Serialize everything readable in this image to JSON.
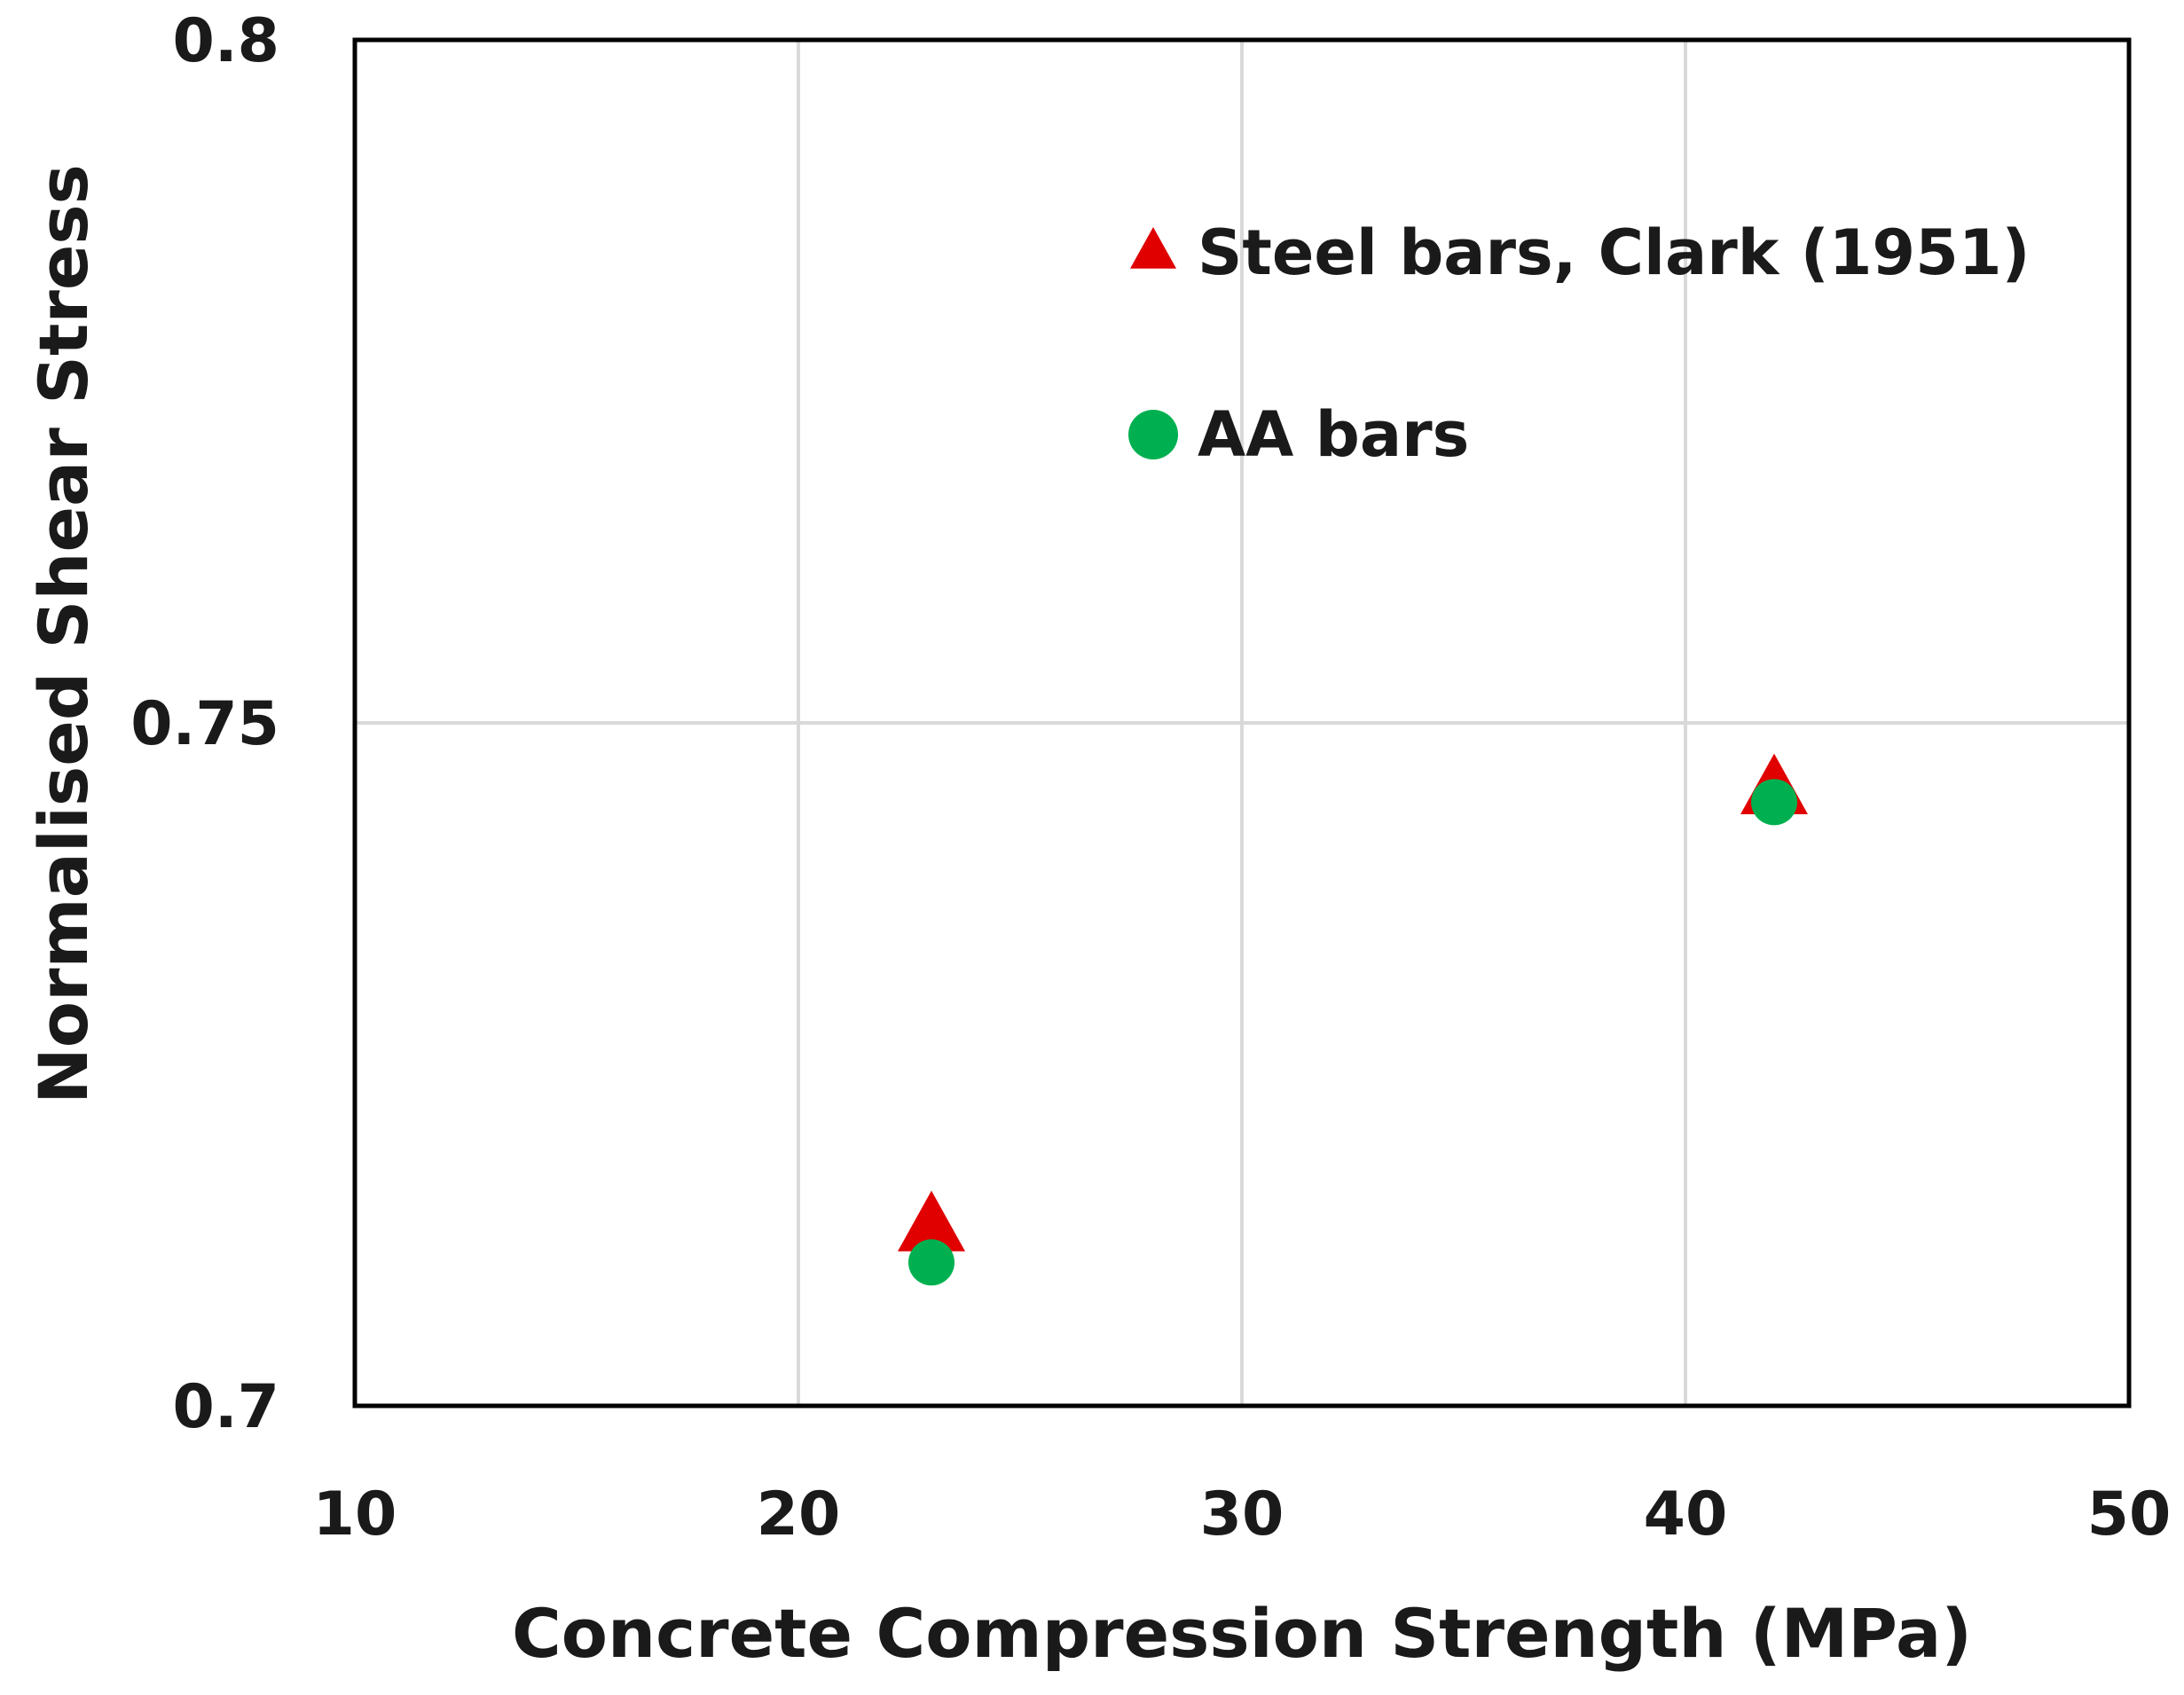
{
  "chart_data": {
    "type": "scatter",
    "title": "",
    "xlabel": "Concrete Compression Strength (MPa)",
    "ylabel": "Normalised Shear Stress",
    "xlim": [
      10,
      50
    ],
    "ylim": [
      0.7,
      0.8
    ],
    "xticks": [
      10,
      20,
      30,
      40,
      50
    ],
    "xtick_labels": [
      "10",
      "20",
      "30",
      "40",
      "50"
    ],
    "yticks": [
      0.7,
      0.75,
      0.8
    ],
    "ytick_labels": [
      "0.7",
      "0.75",
      "0.8"
    ],
    "grid": true,
    "legend_position": "top-center",
    "series": [
      {
        "name": "Steel bars, Clark (1951)",
        "marker": "triangle",
        "color": "#e00000",
        "points": [
          {
            "x": 23,
            "y": 0.713
          },
          {
            "x": 42,
            "y": 0.745
          }
        ]
      },
      {
        "name": "AA bars",
        "marker": "circle",
        "color": "#00b050",
        "points": [
          {
            "x": 23,
            "y": 0.7105
          },
          {
            "x": 42,
            "y": 0.7442
          }
        ]
      }
    ]
  }
}
